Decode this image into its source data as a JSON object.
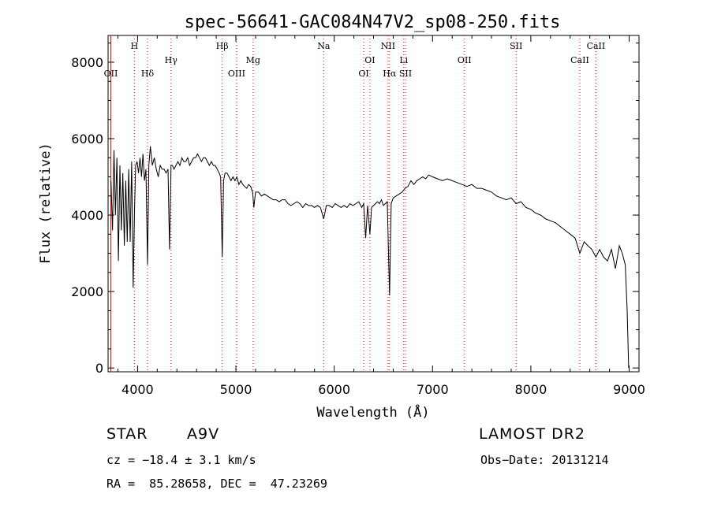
{
  "chart_data": {
    "type": "line",
    "title": "spec-56641-GAC084N47V2_sp08-250.fits",
    "xlabel": "Wavelength (Å)",
    "ylabel": "Flux (relative)",
    "xlim": [
      3700,
      9100
    ],
    "ylim": [
      -100,
      8700
    ],
    "x_ticks": [
      4000,
      5000,
      6000,
      7000,
      8000,
      9000
    ],
    "y_ticks": [
      0,
      2000,
      4000,
      6000,
      8000
    ],
    "line_color": "#000000",
    "marker_color": "#ff0000",
    "grid": false,
    "series": [
      {
        "x": [
          3730,
          3745,
          3760,
          3775,
          3790,
          3805,
          3820,
          3835,
          3850,
          3865,
          3880,
          3895,
          3910,
          3925,
          3940,
          3955,
          3968,
          3980,
          3995,
          4010,
          4025,
          4040,
          4055,
          4070,
          4085,
          4101,
          4115,
          4130,
          4150,
          4170,
          4190,
          4210,
          4230,
          4250,
          4270,
          4290,
          4310,
          4325,
          4340,
          4355,
          4370,
          4390,
          4410,
          4430,
          4450,
          4470,
          4490,
          4510,
          4530,
          4550,
          4570,
          4590,
          4610,
          4630,
          4650,
          4670,
          4690,
          4710,
          4730,
          4750,
          4770,
          4790,
          4810,
          4830,
          4845,
          4861,
          4875,
          4890,
          4910,
          4930,
          4950,
          4970,
          4990,
          5010,
          5030,
          5050,
          5070,
          5090,
          5110,
          5130,
          5150,
          5170,
          5183,
          5200,
          5230,
          5260,
          5290,
          5320,
          5350,
          5380,
          5410,
          5440,
          5470,
          5500,
          5530,
          5560,
          5590,
          5620,
          5650,
          5680,
          5710,
          5740,
          5770,
          5800,
          5830,
          5860,
          5893,
          5920,
          5950,
          5980,
          6010,
          6040,
          6070,
          6100,
          6130,
          6160,
          6190,
          6220,
          6250,
          6280,
          6300,
          6320,
          6340,
          6363,
          6380,
          6400,
          6420,
          6440,
          6460,
          6480,
          6500,
          6520,
          6540,
          6563,
          6580,
          6600,
          6630,
          6660,
          6690,
          6720,
          6750,
          6780,
          6810,
          6840,
          6870,
          6900,
          6930,
          6960,
          7000,
          7050,
          7100,
          7150,
          7200,
          7250,
          7300,
          7350,
          7400,
          7450,
          7500,
          7550,
          7600,
          7650,
          7700,
          7750,
          7800,
          7850,
          7900,
          7950,
          8000,
          8050,
          8100,
          8150,
          8200,
          8250,
          8300,
          8350,
          8400,
          8450,
          8498,
          8542,
          8580,
          8620,
          8662,
          8700,
          8740,
          8780,
          8820,
          8860,
          8900,
          8930,
          8960,
          8980,
          8995
        ],
        "y": [
          4900,
          3600,
          5700,
          4000,
          5500,
          2800,
          5300,
          3600,
          5100,
          3200,
          4900,
          3300,
          5200,
          3300,
          5400,
          2100,
          4000,
          5300,
          5400,
          5100,
          5500,
          5000,
          5600,
          4900,
          5200,
          2700,
          5300,
          5800,
          5300,
          5500,
          5200,
          5000,
          5300,
          5200,
          5200,
          5100,
          5200,
          3100,
          5300,
          5300,
          5200,
          5300,
          5400,
          5300,
          5500,
          5400,
          5400,
          5500,
          5300,
          5400,
          5500,
          5500,
          5600,
          5500,
          5400,
          5500,
          5500,
          5400,
          5300,
          5400,
          5300,
          5300,
          5200,
          5100,
          5000,
          2900,
          4900,
          5100,
          5100,
          5000,
          4900,
          5000,
          4900,
          5000,
          4800,
          4900,
          4800,
          4750,
          4700,
          4800,
          4750,
          4600,
          4200,
          4600,
          4600,
          4500,
          4550,
          4500,
          4450,
          4400,
          4400,
          4350,
          4400,
          4400,
          4300,
          4250,
          4300,
          4350,
          4300,
          4200,
          4300,
          4250,
          4250,
          4200,
          4250,
          4200,
          3900,
          4250,
          4250,
          4200,
          4300,
          4250,
          4200,
          4250,
          4200,
          4300,
          4250,
          4300,
          4350,
          4200,
          4300,
          3400,
          4250,
          3500,
          4200,
          4250,
          4300,
          4350,
          4300,
          4400,
          4250,
          4300,
          4350,
          1900,
          4300,
          4450,
          4500,
          4550,
          4600,
          4700,
          4750,
          4900,
          4800,
          4900,
          4950,
          5000,
          4950,
          5050,
          5000,
          4950,
          4900,
          4950,
          4900,
          4850,
          4800,
          4750,
          4800,
          4700,
          4700,
          4650,
          4600,
          4500,
          4450,
          4400,
          4450,
          4300,
          4350,
          4200,
          4150,
          4050,
          4000,
          3900,
          3850,
          3800,
          3700,
          3600,
          3500,
          3400,
          3000,
          3300,
          3200,
          3100,
          2900,
          3100,
          2900,
          2800,
          3100,
          2600,
          3200,
          3000,
          2700,
          1500,
          0
        ]
      }
    ],
    "lines": [
      {
        "label": "OII",
        "x": 3728,
        "row": 4,
        "dotted": false
      },
      {
        "label": "H",
        "x": 3968,
        "row": 1,
        "dotted": true
      },
      {
        "label": "Hδ",
        "x": 4101,
        "row": 3,
        "dotted": true
      },
      {
        "label": "Hγ",
        "x": 4340,
        "row": 2,
        "dotted": true
      },
      {
        "label": "Hβ",
        "x": 4861,
        "row": 1,
        "dotted": true
      },
      {
        "label": "OIII",
        "x": 5007,
        "row": 3,
        "dotted": true
      },
      {
        "label": "Mg",
        "x": 5175,
        "row": 2,
        "dotted": true
      },
      {
        "label": "Na",
        "x": 5893,
        "row": 1,
        "dotted": true
      },
      {
        "label": "OI",
        "x": 6300,
        "row": 3,
        "dotted": true
      },
      {
        "label": "OI",
        "x": 6363,
        "row": 2,
        "dotted": true
      },
      {
        "label": "NII",
        "x": 6548,
        "row": 1,
        "dotted": true
      },
      {
        "label": "Hα",
        "x": 6563,
        "row": 3,
        "dotted": true
      },
      {
        "label": "Li",
        "x": 6707,
        "row": 2,
        "dotted": true
      },
      {
        "label": "SII",
        "x": 6725,
        "row": 3,
        "dotted": true
      },
      {
        "label": "OII",
        "x": 7325,
        "row": 2,
        "dotted": true
      },
      {
        "label": "SII",
        "x": 7850,
        "row": 1,
        "dotted": true
      },
      {
        "label": "CaII",
        "x": 8498,
        "row": 2,
        "dotted": true
      },
      {
        "label": "CaII",
        "x": 8662,
        "row": 1,
        "dotted": true
      }
    ]
  },
  "info": {
    "object_class": "STAR",
    "subclass": "A9V",
    "survey": "LAMOST DR2",
    "redshift_line": "cz = −18.4 ± 3.1 km/s",
    "obs_date_line": "Obs−Date: 20131214",
    "coords_line": "RA =  85.28658, DEC =  47.23269"
  }
}
